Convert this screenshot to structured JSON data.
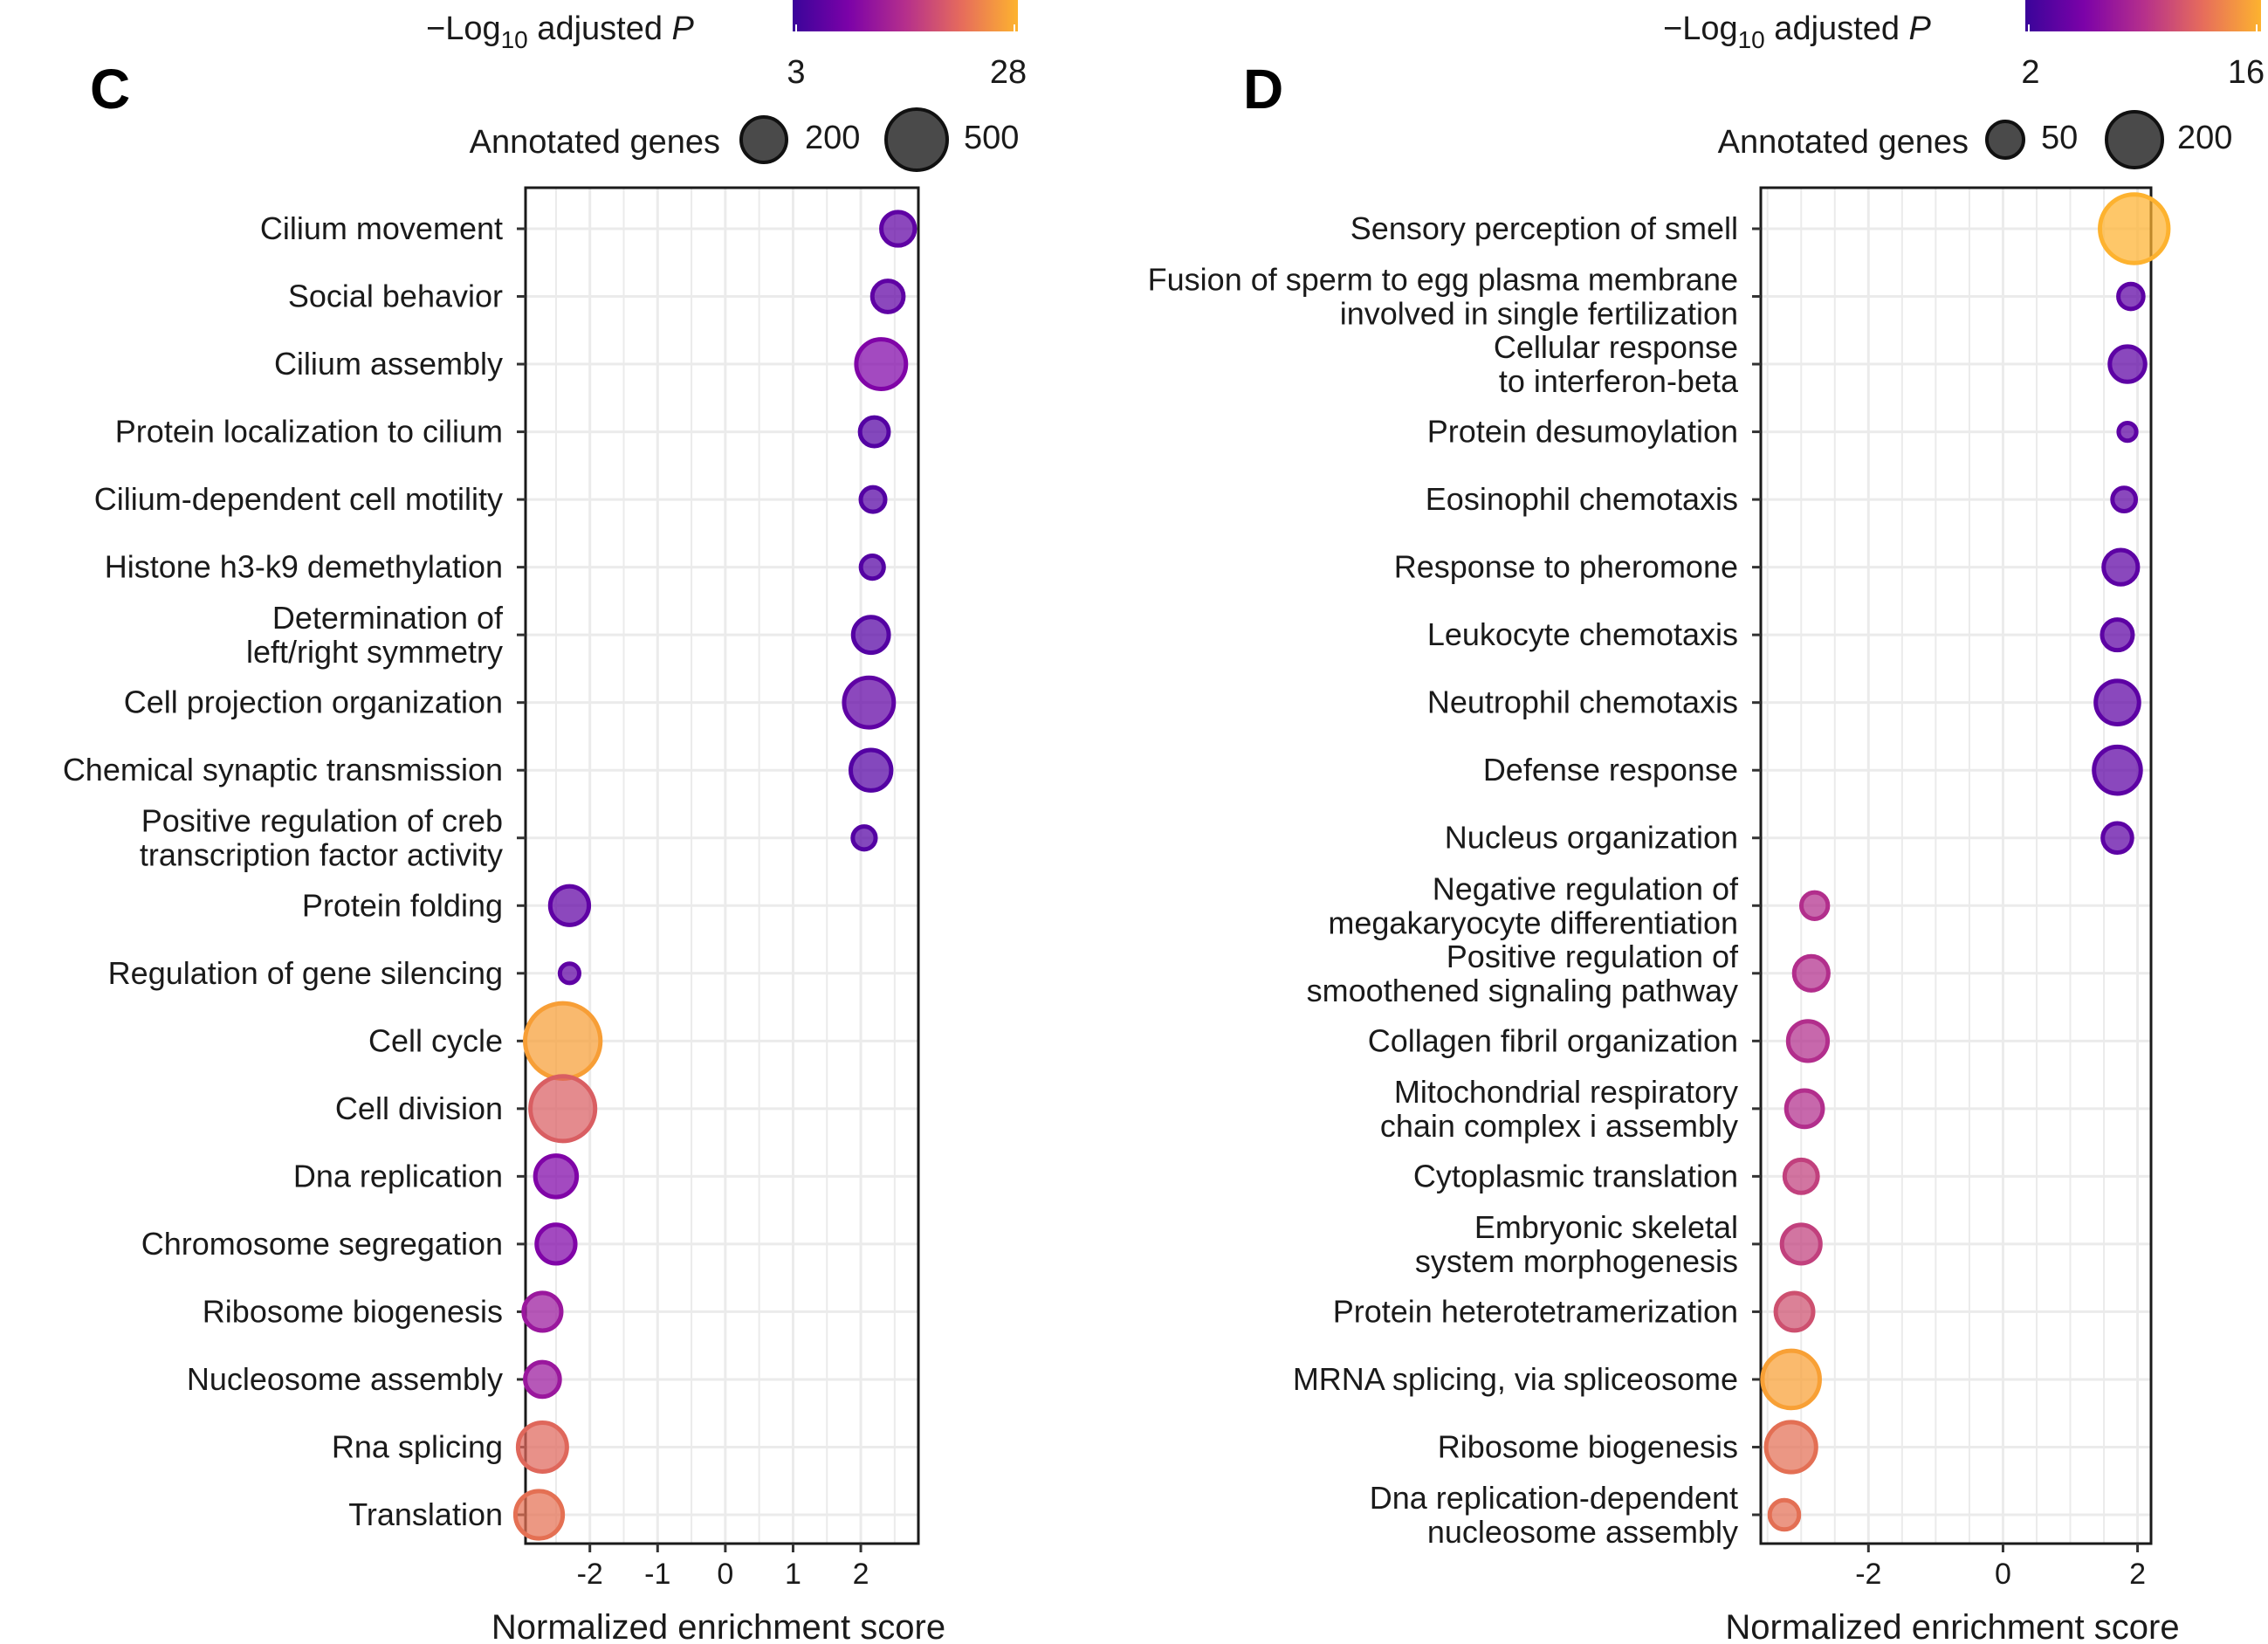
{
  "chart_data": [
    {
      "type": "scatter",
      "panel_label": "C",
      "xlabel": "Normalized enrichment score",
      "xticks": [
        -2,
        -1,
        0,
        1,
        2
      ],
      "xlim": [
        -2.95,
        2.85
      ],
      "size_legend": {
        "title": "Annotated genes",
        "values": [
          200,
          500
        ]
      },
      "color_legend": {
        "title_prefix": "−Log",
        "title_sub": "10",
        "title_rest": " adjusted ",
        "title_italic": "P",
        "min": 3,
        "max": 28
      },
      "categories": [
        "Cilium movement",
        "Social behavior",
        "Cilium assembly",
        "Protein localization to cilium",
        "Cilium-dependent cell motility",
        "Histone h3-k9 demethylation",
        "Determination of\nleft/right symmetry",
        "Cell projection organization",
        "Chemical synaptic transmission",
        "Positive regulation of creb\ntranscription factor activity",
        "Protein folding",
        "Regulation of gene silencing",
        "Cell cycle",
        "Cell division",
        "Dna replication",
        "Chromosome segregation",
        "Ribosome biogenesis",
        "Nucleosome assembly",
        "Rna splicing",
        "Translation"
      ],
      "x": [
        2.55,
        2.4,
        2.3,
        2.2,
        2.18,
        2.17,
        2.15,
        2.12,
        2.15,
        2.05,
        -2.3,
        -2.3,
        -2.4,
        -2.4,
        -2.5,
        -2.5,
        -2.7,
        -2.7,
        -2.7,
        -2.75
      ],
      "genes": [
        150,
        130,
        330,
        110,
        80,
        70,
        170,
        330,
        220,
        70,
        200,
        50,
        760,
        560,
        230,
        200,
        190,
        160,
        320,
        300
      ],
      "neglog10p": [
        5,
        5,
        8,
        4,
        4,
        4,
        4,
        5,
        4,
        4,
        5,
        5,
        26,
        19,
        8,
        8,
        11,
        11,
        20,
        21
      ]
    },
    {
      "type": "scatter",
      "panel_label": "D",
      "xlabel": "Normalized enrichment score",
      "xticks": [
        -2,
        0,
        2
      ],
      "xlim": [
        -3.6,
        2.2
      ],
      "size_legend": {
        "title": "Annotated genes",
        "values": [
          50,
          200
        ]
      },
      "color_legend": {
        "title_prefix": "−Log",
        "title_sub": "10",
        "title_rest": " adjusted ",
        "title_italic": "P",
        "min": 2,
        "max": 16
      },
      "categories": [
        "Sensory perception of smell",
        "Fusion of sperm to egg plasma membrane\ninvolved in single fertilization",
        "Cellular response\nto interferon-beta",
        "Protein desumoylation",
        "Eosinophil chemotaxis",
        "Response to pheromone",
        "Leukocyte chemotaxis",
        "Neutrophil chemotaxis",
        "Defense response",
        "Nucleus organization",
        "Negative regulation of\nmegakaryocyte differentiation",
        "Positive regulation of\nsmoothened signaling pathway",
        "Collagen fibril organization",
        "Mitochondrial respiratory\nchain complex i assembly",
        "Cytoplasmic translation",
        "Embryonic skeletal\nsystem morphogenesis",
        "Protein heterotetramerization",
        "MRNA splicing, via spliceosome",
        "Ribosome biogenesis",
        "Dna replication-dependent\nnucleosome assembly"
      ],
      "x": [
        1.95,
        1.9,
        1.85,
        1.85,
        1.8,
        1.75,
        1.7,
        1.7,
        1.7,
        1.7,
        -2.8,
        -2.85,
        -2.9,
        -2.95,
        -3.0,
        -3.0,
        -3.1,
        -3.15,
        -3.15,
        -3.25
      ],
      "genes": [
        300,
        40,
        80,
        20,
        35,
        75,
        60,
        120,
        140,
        55,
        45,
        75,
        100,
        85,
        70,
        95,
        90,
        210,
        160,
        55
      ],
      "neglog10p": [
        16,
        3,
        3,
        3,
        3,
        3,
        3,
        3,
        3,
        3,
        8,
        8,
        8,
        8,
        9,
        9,
        10,
        15,
        12,
        12
      ]
    }
  ]
}
